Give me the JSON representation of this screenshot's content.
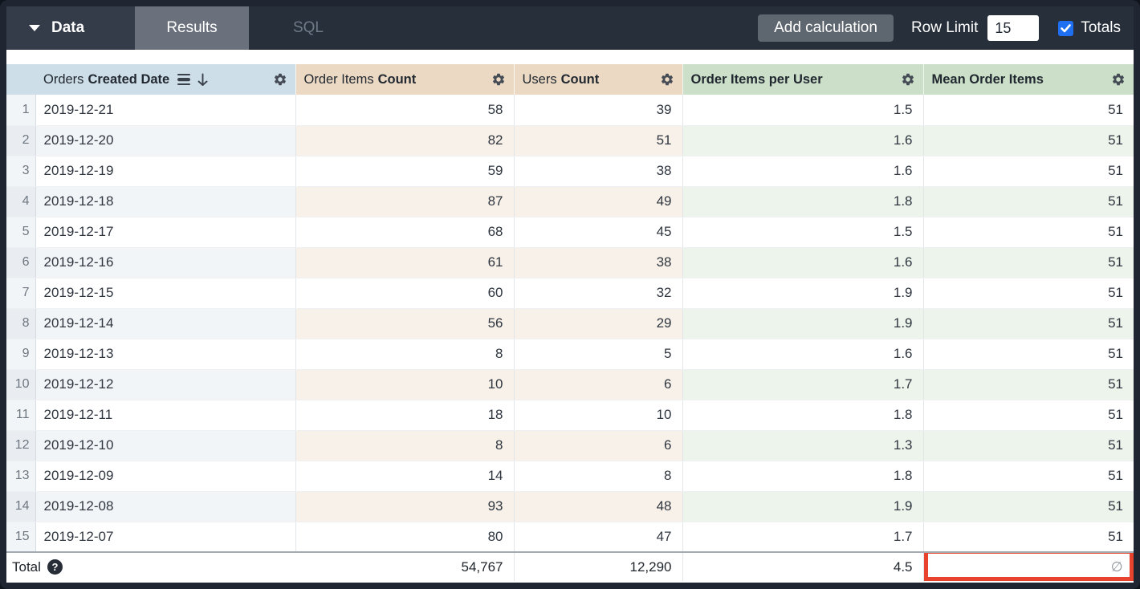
{
  "toolbar": {
    "data_label": "Data",
    "tabs": [
      {
        "label": "Results",
        "active": true
      },
      {
        "label": "SQL",
        "active": false
      }
    ],
    "add_calculation_label": "Add calculation",
    "row_limit_label": "Row Limit",
    "row_limit_value": "15",
    "totals_label": "Totals",
    "totals_checked": true
  },
  "table": {
    "columns": [
      {
        "prefix": "Orders",
        "name": "Created Date",
        "kind": "dimension",
        "sort": "desc"
      },
      {
        "prefix": "Order Items",
        "name": "Count",
        "kind": "measure"
      },
      {
        "prefix": "Users",
        "name": "Count",
        "kind": "measure"
      },
      {
        "prefix": "",
        "name": "Order Items per User",
        "kind": "table_calculation"
      },
      {
        "prefix": "",
        "name": "Mean Order Items",
        "kind": "table_calculation"
      }
    ],
    "rows": [
      [
        "2019-12-21",
        "58",
        "39",
        "1.5",
        "51"
      ],
      [
        "2019-12-20",
        "82",
        "51",
        "1.6",
        "51"
      ],
      [
        "2019-12-19",
        "59",
        "38",
        "1.6",
        "51"
      ],
      [
        "2019-12-18",
        "87",
        "49",
        "1.8",
        "51"
      ],
      [
        "2019-12-17",
        "68",
        "45",
        "1.5",
        "51"
      ],
      [
        "2019-12-16",
        "61",
        "38",
        "1.6",
        "51"
      ],
      [
        "2019-12-15",
        "60",
        "32",
        "1.9",
        "51"
      ],
      [
        "2019-12-14",
        "56",
        "29",
        "1.9",
        "51"
      ],
      [
        "2019-12-13",
        "8",
        "5",
        "1.6",
        "51"
      ],
      [
        "2019-12-12",
        "10",
        "6",
        "1.7",
        "51"
      ],
      [
        "2019-12-11",
        "18",
        "10",
        "1.8",
        "51"
      ],
      [
        "2019-12-10",
        "8",
        "6",
        "1.3",
        "51"
      ],
      [
        "2019-12-09",
        "14",
        "8",
        "1.8",
        "51"
      ],
      [
        "2019-12-08",
        "93",
        "48",
        "1.9",
        "51"
      ],
      [
        "2019-12-07",
        "80",
        "47",
        "1.7",
        "51"
      ]
    ],
    "total": {
      "label": "Total",
      "order_items_count": "54,767",
      "users_count": "12,290",
      "order_items_per_user": "4.5",
      "mean_order_items": "∅"
    }
  },
  "colors": {
    "dimension_header": "#CEDEE9",
    "measure_header": "#EBD9C4",
    "calc_header": "#CBDFC9",
    "highlight_red": "#E8432C",
    "checkbox_blue": "#1E6FF2",
    "topbar": "#272F3B"
  }
}
